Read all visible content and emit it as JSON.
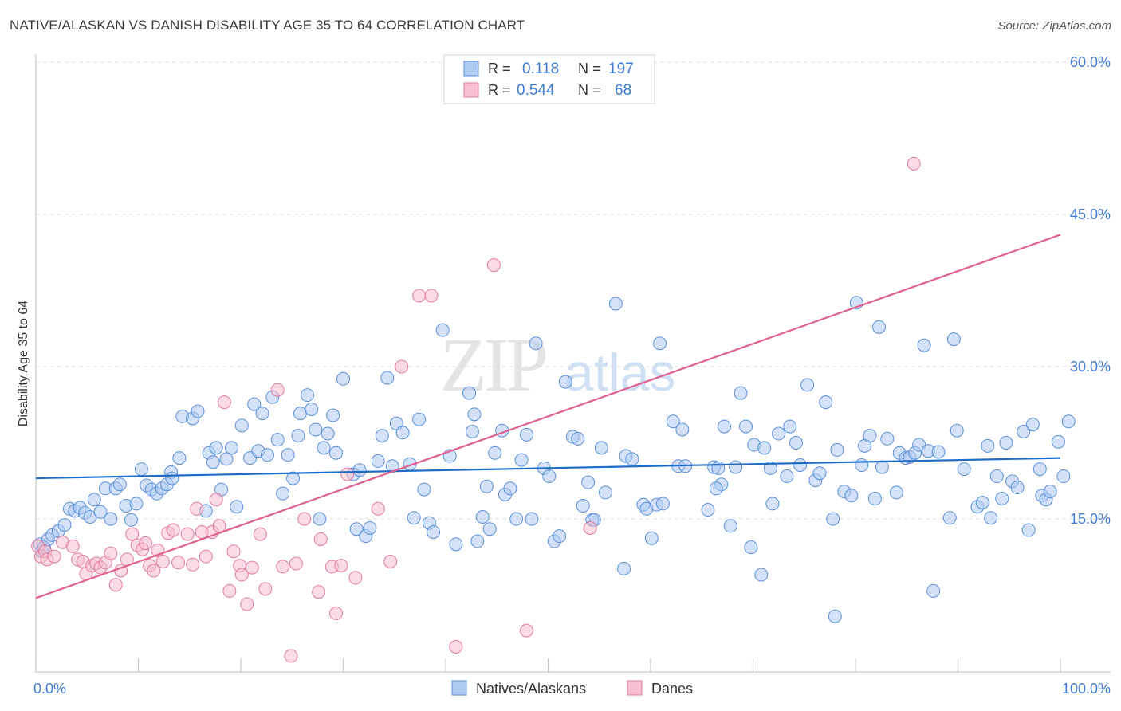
{
  "title": "NATIVE/ALASKAN VS DANISH DISABILITY AGE 35 TO 64 CORRELATION CHART",
  "source": "Source: ZipAtlas.com",
  "watermark": {
    "zip": "ZIP",
    "atlas": "atlas"
  },
  "colors": {
    "blue_fill": "#aecbf2",
    "blue_stroke": "#5b8fd8",
    "blue_line": "#1f6cc8",
    "pink_fill": "#f7bfd0",
    "pink_stroke": "#e07a9c",
    "pink_line": "#e0608f",
    "value_text": "#3f7bd4",
    "grid": "#dddddd",
    "axis_text": "#3f7bd4"
  },
  "legend": {
    "r_label": "R =",
    "n_label": "N =",
    "rows": [
      {
        "series": "Natives/Alaskans",
        "r": "0.118",
        "n": "197",
        "color": "blue"
      },
      {
        "series": "Danes",
        "r": "0.544",
        "n": "68",
        "color": "pink"
      }
    ]
  },
  "chart_data": {
    "type": "scatter",
    "title": "NATIVE/ALASKAN VS DANISH DISABILITY AGE 35 TO 64 CORRELATION CHART",
    "xlabel": "",
    "ylabel": "Disability Age 35 to 64",
    "xlim": [
      0,
      100
    ],
    "ylim": [
      0,
      62
    ],
    "x_tick_labels": [
      {
        "value": 0,
        "label": "0.0%"
      },
      {
        "value": 100,
        "label": "100.0%"
      }
    ],
    "y_tick_labels": [
      {
        "value": 15,
        "label": "15.0%"
      },
      {
        "value": 30,
        "label": "30.0%"
      },
      {
        "value": 45,
        "label": "45.0%"
      },
      {
        "value": 60,
        "label": "60.0%"
      }
    ],
    "y_grid": [
      15,
      30,
      45,
      60
    ],
    "x_minor_ticks": [
      0,
      10,
      20,
      30,
      40,
      50,
      60,
      70,
      80,
      90,
      100
    ],
    "legend_bottom": [
      "Natives/Alaskans",
      "Danes"
    ],
    "series": [
      {
        "name": "Natives/Alaskans",
        "color": "blue",
        "trend": {
          "x": [
            0,
            100
          ],
          "y": [
            19.0,
            21.0
          ]
        },
        "points": [
          [
            0.4,
            12.5
          ],
          [
            0.6,
            11.8
          ],
          [
            0.8,
            12.2
          ],
          [
            1.2,
            13.0
          ],
          [
            1.6,
            13.4
          ],
          [
            2.2,
            13.8
          ],
          [
            2.8,
            14.4
          ],
          [
            3.3,
            16.0
          ],
          [
            3.8,
            15.8
          ],
          [
            4.3,
            16.1
          ],
          [
            4.8,
            15.6
          ],
          [
            5.3,
            15.2
          ],
          [
            5.7,
            16.9
          ],
          [
            6.3,
            15.7
          ],
          [
            6.8,
            18.0
          ],
          [
            7.3,
            15.0
          ],
          [
            7.8,
            18.0
          ],
          [
            8.2,
            18.4
          ],
          [
            8.8,
            16.3
          ],
          [
            9.3,
            14.9
          ],
          [
            9.8,
            16.5
          ],
          [
            10.3,
            19.9
          ],
          [
            10.8,
            18.3
          ],
          [
            11.3,
            17.9
          ],
          [
            11.8,
            17.5
          ],
          [
            12.3,
            18.0
          ],
          [
            12.8,
            18.4
          ],
          [
            13.2,
            19.6
          ],
          [
            13.3,
            19.0
          ],
          [
            14.0,
            21.0
          ],
          [
            14.3,
            25.1
          ],
          [
            15.3,
            24.9
          ],
          [
            15.8,
            25.6
          ],
          [
            16.6,
            15.8
          ],
          [
            16.9,
            21.5
          ],
          [
            17.3,
            20.6
          ],
          [
            17.6,
            22.0
          ],
          [
            18.1,
            17.9
          ],
          [
            18.6,
            20.9
          ],
          [
            19.1,
            22.0
          ],
          [
            19.6,
            16.2
          ],
          [
            20.1,
            24.2
          ],
          [
            20.9,
            21.0
          ],
          [
            21.3,
            26.3
          ],
          [
            21.7,
            21.7
          ],
          [
            22.1,
            25.4
          ],
          [
            22.6,
            21.3
          ],
          [
            23.1,
            27.0
          ],
          [
            23.6,
            22.8
          ],
          [
            24.1,
            17.5
          ],
          [
            24.6,
            21.3
          ],
          [
            25.1,
            19.0
          ],
          [
            25.6,
            23.2
          ],
          [
            25.8,
            25.4
          ],
          [
            26.5,
            27.2
          ],
          [
            26.9,
            25.8
          ],
          [
            27.3,
            23.8
          ],
          [
            27.7,
            15.0
          ],
          [
            28.1,
            22.0
          ],
          [
            28.5,
            23.4
          ],
          [
            29.0,
            25.2
          ],
          [
            29.3,
            21.5
          ],
          [
            30.0,
            28.8
          ],
          [
            31.0,
            19.4
          ],
          [
            31.3,
            14.0
          ],
          [
            31.6,
            19.8
          ],
          [
            32.2,
            13.3
          ],
          [
            32.6,
            14.1
          ],
          [
            33.4,
            20.7
          ],
          [
            33.8,
            23.2
          ],
          [
            34.3,
            28.9
          ],
          [
            34.8,
            20.2
          ],
          [
            35.2,
            24.4
          ],
          [
            35.8,
            23.5
          ],
          [
            36.5,
            20.4
          ],
          [
            36.9,
            15.1
          ],
          [
            37.4,
            24.8
          ],
          [
            37.9,
            17.9
          ],
          [
            38.4,
            14.6
          ],
          [
            38.8,
            13.7
          ],
          [
            39.7,
            33.6
          ],
          [
            40.4,
            21.2
          ],
          [
            41.0,
            12.5
          ],
          [
            42.3,
            27.4
          ],
          [
            42.6,
            23.6
          ],
          [
            42.8,
            25.3
          ],
          [
            43.1,
            12.8
          ],
          [
            43.6,
            15.2
          ],
          [
            44.0,
            18.2
          ],
          [
            44.3,
            14.0
          ],
          [
            44.8,
            21.5
          ],
          [
            45.5,
            23.7
          ],
          [
            45.8,
            17.4
          ],
          [
            46.3,
            18.0
          ],
          [
            46.9,
            15.0
          ],
          [
            47.4,
            20.8
          ],
          [
            47.9,
            23.3
          ],
          [
            48.4,
            15.0
          ],
          [
            48.8,
            32.3
          ],
          [
            49.6,
            20.0
          ],
          [
            50.1,
            19.2
          ],
          [
            50.6,
            12.8
          ],
          [
            51.1,
            13.3
          ],
          [
            51.7,
            28.5
          ],
          [
            52.4,
            23.1
          ],
          [
            52.9,
            22.9
          ],
          [
            53.4,
            16.3
          ],
          [
            53.9,
            18.6
          ],
          [
            54.3,
            14.9
          ],
          [
            54.5,
            14.9
          ],
          [
            55.2,
            22.0
          ],
          [
            55.6,
            17.6
          ],
          [
            56.6,
            36.2
          ],
          [
            57.4,
            10.1
          ],
          [
            57.6,
            21.2
          ],
          [
            58.2,
            20.9
          ],
          [
            59.3,
            16.4
          ],
          [
            59.6,
            16.0
          ],
          [
            60.1,
            13.1
          ],
          [
            60.6,
            16.4
          ],
          [
            60.9,
            32.3
          ],
          [
            61.2,
            16.5
          ],
          [
            62.2,
            24.6
          ],
          [
            62.7,
            20.2
          ],
          [
            63.1,
            23.8
          ],
          [
            63.4,
            20.2
          ],
          [
            65.6,
            15.9
          ],
          [
            66.2,
            20.1
          ],
          [
            66.6,
            20.0
          ],
          [
            66.9,
            18.4
          ],
          [
            67.2,
            24.1
          ],
          [
            67.8,
            14.3
          ],
          [
            68.3,
            20.1
          ],
          [
            68.8,
            27.4
          ],
          [
            69.3,
            24.1
          ],
          [
            69.8,
            12.2
          ],
          [
            70.1,
            22.3
          ],
          [
            70.8,
            9.5
          ],
          [
            71.1,
            22.0
          ],
          [
            71.9,
            16.5
          ],
          [
            72.5,
            23.4
          ],
          [
            73.3,
            19.2
          ],
          [
            73.6,
            24.1
          ],
          [
            74.2,
            22.5
          ],
          [
            74.6,
            20.3
          ],
          [
            75.3,
            28.2
          ],
          [
            76.1,
            18.8
          ],
          [
            76.5,
            19.5
          ],
          [
            77.1,
            26.5
          ],
          [
            77.8,
            15.0
          ],
          [
            78.2,
            21.8
          ],
          [
            78.9,
            17.7
          ],
          [
            79.6,
            17.3
          ],
          [
            80.1,
            36.3
          ],
          [
            80.6,
            20.3
          ],
          [
            80.9,
            22.2
          ],
          [
            81.4,
            23.2
          ],
          [
            81.9,
            17.0
          ],
          [
            82.3,
            33.9
          ],
          [
            82.6,
            20.1
          ],
          [
            83.1,
            22.9
          ],
          [
            84.0,
            17.6
          ],
          [
            84.3,
            21.5
          ],
          [
            84.9,
            21.0
          ],
          [
            85.3,
            21.1
          ],
          [
            85.8,
            21.5
          ],
          [
            86.2,
            22.3
          ],
          [
            86.7,
            32.1
          ],
          [
            87.1,
            21.7
          ],
          [
            87.6,
            7.9
          ],
          [
            88.1,
            21.6
          ],
          [
            89.2,
            15.1
          ],
          [
            89.6,
            32.7
          ],
          [
            89.9,
            23.7
          ],
          [
            90.6,
            19.9
          ],
          [
            91.9,
            16.2
          ],
          [
            92.4,
            16.6
          ],
          [
            92.9,
            22.2
          ],
          [
            93.2,
            15.1
          ],
          [
            93.8,
            19.2
          ],
          [
            94.3,
            17.0
          ],
          [
            94.7,
            22.5
          ],
          [
            95.3,
            18.7
          ],
          [
            95.8,
            18.1
          ],
          [
            96.4,
            23.6
          ],
          [
            96.9,
            13.9
          ],
          [
            97.3,
            24.3
          ],
          [
            98.0,
            19.9
          ],
          [
            98.2,
            17.3
          ],
          [
            98.6,
            16.9
          ],
          [
            99.0,
            17.7
          ],
          [
            99.8,
            22.6
          ],
          [
            100.3,
            19.2
          ],
          [
            100.8,
            24.6
          ],
          [
            78.0,
            5.4
          ],
          [
            66.4,
            18.0
          ],
          [
            71.7,
            20.0
          ]
        ]
      },
      {
        "name": "Danes",
        "color": "pink",
        "trend": {
          "x": [
            0,
            100
          ],
          "y": [
            7.2,
            43.0
          ]
        },
        "points": [
          [
            0.2,
            12.3
          ],
          [
            0.5,
            11.3
          ],
          [
            0.9,
            11.8
          ],
          [
            1.1,
            11.0
          ],
          [
            1.8,
            11.3
          ],
          [
            2.6,
            12.7
          ],
          [
            3.6,
            12.3
          ],
          [
            4.1,
            11.0
          ],
          [
            4.6,
            10.8
          ],
          [
            4.9,
            9.6
          ],
          [
            5.5,
            10.4
          ],
          [
            5.9,
            10.6
          ],
          [
            6.3,
            10.2
          ],
          [
            6.8,
            10.7
          ],
          [
            7.3,
            11.6
          ],
          [
            7.8,
            8.5
          ],
          [
            8.3,
            9.9
          ],
          [
            8.9,
            11.0
          ],
          [
            9.4,
            13.5
          ],
          [
            9.9,
            12.4
          ],
          [
            10.4,
            12.0
          ],
          [
            10.7,
            12.6
          ],
          [
            11.1,
            10.4
          ],
          [
            11.5,
            9.9
          ],
          [
            11.9,
            11.9
          ],
          [
            12.4,
            10.8
          ],
          [
            12.9,
            13.6
          ],
          [
            13.4,
            13.9
          ],
          [
            13.9,
            10.7
          ],
          [
            14.8,
            13.5
          ],
          [
            15.3,
            10.5
          ],
          [
            15.7,
            16.0
          ],
          [
            16.2,
            13.7
          ],
          [
            16.6,
            11.3
          ],
          [
            17.2,
            13.7
          ],
          [
            17.6,
            16.9
          ],
          [
            17.9,
            14.3
          ],
          [
            18.4,
            26.5
          ],
          [
            18.9,
            7.9
          ],
          [
            19.3,
            11.8
          ],
          [
            19.9,
            10.4
          ],
          [
            20.1,
            9.5
          ],
          [
            20.6,
            6.6
          ],
          [
            21.1,
            10.2
          ],
          [
            21.9,
            13.5
          ],
          [
            22.4,
            8.1
          ],
          [
            23.6,
            27.7
          ],
          [
            24.1,
            10.3
          ],
          [
            24.9,
            1.5
          ],
          [
            25.4,
            10.6
          ],
          [
            26.2,
            15.0
          ],
          [
            27.6,
            7.8
          ],
          [
            27.8,
            13.0
          ],
          [
            28.9,
            10.3
          ],
          [
            29.3,
            5.7
          ],
          [
            29.8,
            10.4
          ],
          [
            30.4,
            19.4
          ],
          [
            31.2,
            9.2
          ],
          [
            33.4,
            16.0
          ],
          [
            34.6,
            10.8
          ],
          [
            35.7,
            30.0
          ],
          [
            37.4,
            37.0
          ],
          [
            38.6,
            37.0
          ],
          [
            41.0,
            2.4
          ],
          [
            44.7,
            40.0
          ],
          [
            47.9,
            4.0
          ],
          [
            54.1,
            14.1
          ],
          [
            85.7,
            50.0
          ]
        ]
      }
    ]
  }
}
